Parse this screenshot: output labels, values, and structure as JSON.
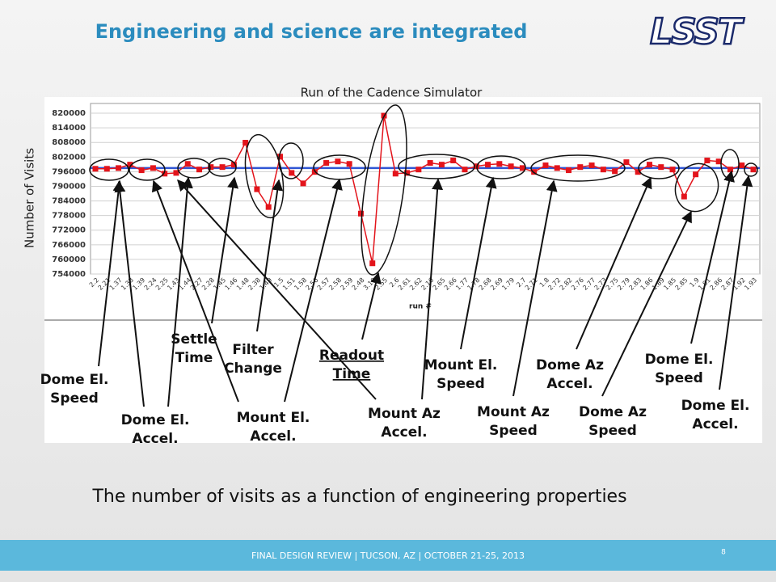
{
  "header": {
    "title": "Engineering and science are integrated",
    "logo": "LSST"
  },
  "chart_data": {
    "type": "line",
    "title": "Run of the Cadence Simulator",
    "y_label": "Number of Visits",
    "x_label": "run #",
    "categories": [
      "2.2",
      "2.21",
      "1.37",
      "1.38",
      "1.39",
      "2.24",
      "2.25",
      "1.43",
      "1.44",
      "2.27",
      "2.28",
      "1.45",
      "1.46",
      "1.48",
      "2.38",
      "1.49",
      "1.5",
      "1.51",
      "1.58",
      "2.56",
      "2.57",
      "2.58",
      "2.59",
      "2.48",
      "3.19",
      "2.55",
      "2.6",
      "2.61",
      "2.62",
      "2.16",
      "2.65",
      "2.66",
      "1.77",
      "1.78",
      "2.68",
      "2.69",
      "1.79",
      "2.7",
      "2.71",
      "1.8",
      "2.72",
      "2.82",
      "2.76",
      "2.77",
      "2.73",
      "2.75",
      "2.79",
      "2.83",
      "1.86",
      "1.89",
      "1.85",
      "2.85",
      "1.9",
      "1.91",
      "2.86",
      "2.87",
      "1.92",
      "1.93"
    ],
    "series": [
      {
        "name": "Visits",
        "color": "#e3141b",
        "values": [
          797200,
          797200,
          797500,
          798900,
          796600,
          797500,
          795200,
          795500,
          799200,
          796900,
          797900,
          797900,
          798900,
          807900,
          788800,
          781500,
          802200,
          795500,
          791200,
          795900,
          799600,
          800200,
          799200,
          778800,
          758400,
          819000,
          795200,
          795500,
          796900,
          799600,
          798900,
          800600,
          796900,
          798200,
          798900,
          799200,
          798200,
          797500,
          795900,
          798600,
          797500,
          796600,
          797900,
          798600,
          796900,
          796200,
          799900,
          795900,
          798900,
          797900,
          796900,
          785800,
          794900,
          800600,
          800200,
          796900,
          798600,
          796900
        ]
      }
    ],
    "reference_value": 797500,
    "reference_color": "#2f55d4",
    "ylim": [
      754000,
      824000
    ],
    "yticks": [
      754000,
      760000,
      766000,
      772000,
      778000,
      784000,
      790000,
      796000,
      802000,
      808000,
      814000,
      820000
    ],
    "grid": true
  },
  "annotations": [
    {
      "lines": [
        "Dome El.",
        "Speed"
      ]
    },
    {
      "lines": [
        "Dome El.",
        "Accel."
      ]
    },
    {
      "lines": [
        "Settle",
        "Time"
      ]
    },
    {
      "lines": [
        "Filter",
        "Change"
      ]
    },
    {
      "lines": [
        "Mount El.",
        "Accel."
      ]
    },
    {
      "lines": [
        "Readout",
        "Time"
      ]
    },
    {
      "lines": [
        "Mount Az",
        "Accel."
      ]
    },
    {
      "lines": [
        "Mount El.",
        "Speed"
      ]
    },
    {
      "lines": [
        "Mount Az",
        "Speed"
      ]
    },
    {
      "lines": [
        "Dome Az",
        "Accel."
      ]
    },
    {
      "lines": [
        "Dome Az",
        "Speed"
      ]
    },
    {
      "lines": [
        "Dome El.",
        "Speed"
      ]
    },
    {
      "lines": [
        "Dome El.",
        "Accel."
      ]
    }
  ],
  "caption": "The number of visits as a function of engineering properties",
  "footer": {
    "text": "FINAL DESIGN REVIEW | TUCSON, AZ | OCTOBER 21-25, 2013",
    "page": "8"
  }
}
